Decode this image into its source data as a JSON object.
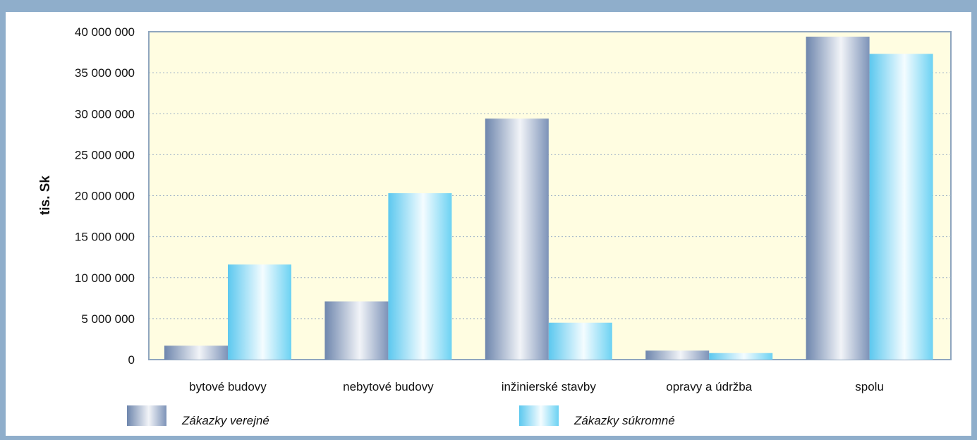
{
  "chart_data": {
    "type": "bar",
    "ylabel": "tis. Sk",
    "ylim": [
      0,
      40000000
    ],
    "y_ticks": [
      0,
      5000000,
      10000000,
      15000000,
      20000000,
      25000000,
      30000000,
      35000000,
      40000000
    ],
    "y_tick_labels": [
      "0",
      "5 000 000",
      "10 000 000",
      "15 000 000",
      "20 000 000",
      "25 000 000",
      "30 000 000",
      "35 000 000",
      "40 000 000"
    ],
    "grid": true,
    "legend_position": "bottom",
    "categories": [
      "bytové budovy",
      "nebytové budovy",
      "inžinierské stavby",
      "opravy a údržba",
      "spolu"
    ],
    "series": [
      {
        "name": "Zákazky verejné",
        "values": [
          1700000,
          7100000,
          29400000,
          1100000,
          39400000
        ],
        "color": "#7d93b8"
      },
      {
        "name": "Zákazky súkromné",
        "values": [
          11600000,
          20300000,
          4500000,
          800000,
          37300000
        ],
        "color": "#6cd2f3"
      }
    ],
    "plot_background": "#fffde1"
  }
}
